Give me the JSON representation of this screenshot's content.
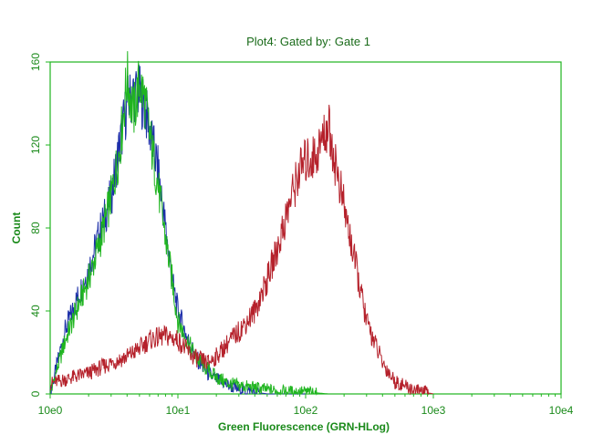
{
  "chart_data": {
    "type": "line",
    "title": "Plot4:  Gated by: Gate 1",
    "xlabel": "Green Fluorescence (GRN-HLog)",
    "ylabel": "Count",
    "x_scale": "log",
    "xlim": [
      1,
      10000
    ],
    "ylim": [
      0,
      160
    ],
    "x_ticks": [
      {
        "value": 1,
        "label": "10e0"
      },
      {
        "value": 10,
        "label": "10e1"
      },
      {
        "value": 100,
        "label": "10e2"
      },
      {
        "value": 1000,
        "label": "10e3"
      },
      {
        "value": 10000,
        "label": "10e4"
      }
    ],
    "y_ticks": [
      {
        "value": 0,
        "label": "0"
      },
      {
        "value": 40,
        "label": "40"
      },
      {
        "value": 80,
        "label": "80"
      },
      {
        "value": 120,
        "label": "120"
      },
      {
        "value": 160,
        "label": "160"
      }
    ],
    "grid": false,
    "legend": "none",
    "series": [
      {
        "color": "#1c2fa8",
        "x": [
          1,
          1.3,
          1.6,
          2,
          2.5,
          3,
          3.5,
          4,
          4.5,
          5,
          5.5,
          6,
          7,
          8,
          9,
          10,
          12,
          14,
          17,
          20,
          25,
          30,
          40,
          50,
          70,
          100
        ],
        "y": [
          0,
          30,
          45,
          60,
          80,
          95,
          120,
          140,
          145,
          145,
          138,
          128,
          108,
          80,
          55,
          40,
          26,
          17,
          10,
          7,
          4,
          2,
          1,
          0,
          0,
          0
        ]
      },
      {
        "color": "#1fb51f",
        "x": [
          1,
          1.3,
          1.6,
          2,
          2.5,
          3,
          3.5,
          4,
          4.5,
          5,
          5.5,
          6,
          7,
          8,
          9,
          10,
          12,
          14,
          17,
          20,
          25,
          30,
          40,
          50,
          70,
          100,
          150
        ],
        "y": [
          0,
          25,
          40,
          55,
          75,
          95,
          118,
          152,
          135,
          150,
          142,
          125,
          100,
          75,
          55,
          35,
          25,
          17,
          12,
          8,
          5,
          4,
          3,
          2,
          1,
          1,
          0
        ]
      },
      {
        "color": "#b5212b",
        "x": [
          1,
          1.5,
          2,
          3,
          4,
          5,
          6,
          8,
          10,
          13,
          17,
          20,
          25,
          30,
          40,
          50,
          60,
          70,
          80,
          90,
          100,
          120,
          140,
          150,
          170,
          200,
          250,
          300,
          400,
          500,
          700,
          1000
        ],
        "y": [
          5,
          8,
          10,
          15,
          18,
          22,
          26,
          28,
          26,
          18,
          15,
          18,
          25,
          30,
          40,
          55,
          70,
          85,
          98,
          108,
          112,
          115,
          125,
          130,
          112,
          90,
          60,
          35,
          15,
          6,
          2,
          0
        ]
      }
    ]
  }
}
